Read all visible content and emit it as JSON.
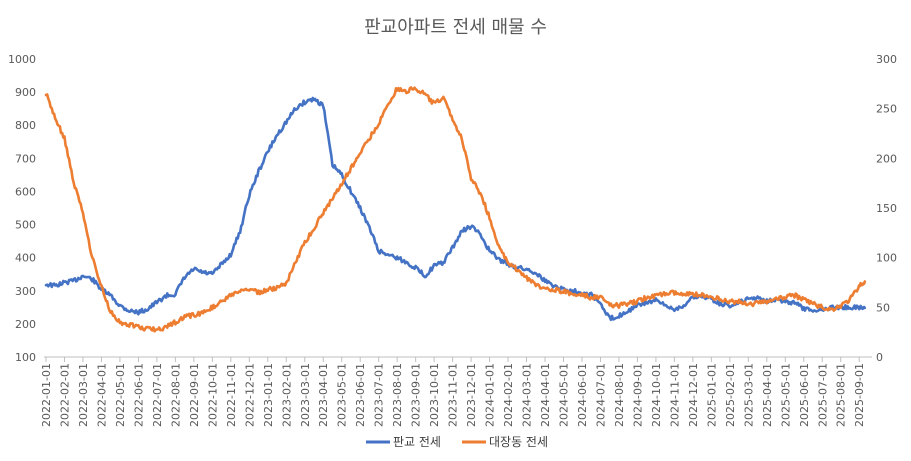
{
  "chart_data": {
    "type": "line",
    "title": "판교아파트 전세 매물 수",
    "x_ticks": [
      "2022-01-01",
      "2022-02-01",
      "2022-03-01",
      "2022-04-01",
      "2022-05-01",
      "2022-06-01",
      "2022-07-01",
      "2022-08-01",
      "2022-09-01",
      "2022-10-01",
      "2022-11-01",
      "2022-12-01",
      "2023-01-01",
      "2023-02-01",
      "2023-03-01",
      "2023-04-01",
      "2023-05-01",
      "2023-06-01",
      "2023-07-01",
      "2023-08-01",
      "2023-09-01",
      "2023-10-01",
      "2023-11-01",
      "2023-12-01",
      "2024-01-01",
      "2024-02-01",
      "2024-03-01",
      "2024-04-01",
      "2024-05-01",
      "2024-06-01",
      "2024-07-01",
      "2024-08-01",
      "2024-09-01",
      "2024-10-01",
      "2024-11-01",
      "2024-12-01",
      "2025-01-01",
      "2025-02-01",
      "2025-03-01",
      "2025-04-01",
      "2025-05-01",
      "2025-06-01",
      "2025-07-01",
      "2025-08-01",
      "2025-09-01"
    ],
    "y_left": {
      "min": 100,
      "max": 1000,
      "ticks": [
        "100",
        "200",
        "300",
        "400",
        "500",
        "600",
        "700",
        "800",
        "900",
        "1000"
      ]
    },
    "y_right": {
      "min": 0,
      "max": 300,
      "ticks": [
        "0",
        "50",
        "100",
        "150",
        "200",
        "250",
        "300"
      ]
    },
    "grid": false,
    "legend_position": "bottom",
    "series": [
      {
        "name": "판교 전세",
        "axis": "left",
        "color": "#4472C4",
        "x": [
          0,
          0.5,
          1,
          1.5,
          2,
          2.5,
          3,
          3.5,
          4,
          4.5,
          5,
          5.5,
          6,
          6.5,
          7,
          7.5,
          8,
          8.5,
          9,
          9.5,
          10,
          10.5,
          11,
          11.5,
          12,
          12.5,
          13,
          13.5,
          14,
          14.5,
          15,
          15.5,
          16,
          16.5,
          17,
          17.5,
          18,
          18.5,
          19,
          19.5,
          20,
          20.5,
          21,
          21.5,
          22,
          22.5,
          23,
          23.5,
          24,
          24.5,
          25,
          25.5,
          26,
          26.5,
          27,
          27.5,
          28,
          28.5,
          29,
          29.5,
          30,
          30.5,
          31,
          31.5,
          32,
          32.5,
          33,
          33.5,
          34,
          34.5,
          35,
          35.5,
          36,
          36.5,
          37,
          37.5,
          38,
          38.5,
          39,
          39.5,
          40,
          40.5,
          41,
          41.5,
          42,
          42.5,
          43,
          43.5,
          44,
          44.3
        ],
        "values": [
          320,
          315,
          325,
          330,
          345,
          335,
          305,
          285,
          255,
          240,
          235,
          245,
          265,
          285,
          290,
          340,
          365,
          355,
          350,
          380,
          410,
          480,
          590,
          660,
          720,
          770,
          810,
          850,
          870,
          880,
          860,
          680,
          650,
          600,
          550,
          490,
          420,
          410,
          400,
          385,
          370,
          345,
          375,
          385,
          430,
          480,
          495,
          470,
          420,
          395,
          380,
          370,
          365,
          355,
          330,
          315,
          305,
          300,
          295,
          290,
          260,
          215,
          225,
          240,
          255,
          265,
          270,
          255,
          245,
          255,
          280,
          285,
          275,
          260,
          255,
          265,
          275,
          280,
          270,
          275,
          265,
          265,
          245,
          240,
          245,
          250,
          250,
          250,
          250,
          248
        ]
      },
      {
        "name": "대장동 전세",
        "axis": "right",
        "color": "#ED7D31",
        "x": [
          0,
          0.5,
          1,
          1.5,
          2,
          2.5,
          3,
          3.5,
          4,
          4.5,
          5,
          5.5,
          6,
          6.5,
          7,
          7.5,
          8,
          8.5,
          9,
          9.5,
          10,
          10.5,
          11,
          11.5,
          12,
          12.5,
          13,
          13.5,
          14,
          14.5,
          15,
          15.5,
          16,
          16.5,
          17,
          17.5,
          18,
          18.5,
          19,
          19.5,
          20,
          20.5,
          21,
          21.5,
          22,
          22.5,
          23,
          23.5,
          24,
          24.5,
          25,
          25.5,
          26,
          26.5,
          27,
          27.5,
          28,
          28.5,
          29,
          29.5,
          30,
          30.5,
          31,
          31.5,
          32,
          32.5,
          33,
          33.5,
          34,
          34.5,
          35,
          35.5,
          36,
          36.5,
          37,
          37.5,
          38,
          38.5,
          39,
          39.5,
          40,
          40.5,
          41,
          41.5,
          42,
          42.5,
          43,
          43.5,
          44,
          44.3
        ],
        "values": [
          265,
          240,
          220,
          175,
          145,
          100,
          70,
          45,
          35,
          33,
          30,
          28,
          28,
          30,
          35,
          40,
          42,
          45,
          50,
          55,
          62,
          65,
          68,
          65,
          68,
          70,
          75,
          95,
          115,
          130,
          145,
          160,
          175,
          190,
          205,
          220,
          235,
          255,
          270,
          268,
          270,
          265,
          255,
          262,
          240,
          220,
          180,
          165,
          140,
          110,
          95,
          88,
          80,
          72,
          68,
          68,
          66,
          62,
          62,
          60,
          60,
          52,
          52,
          54,
          56,
          60,
          62,
          64,
          65,
          62,
          64,
          62,
          60,
          58,
          56,
          56,
          52,
          54,
          56,
          58,
          60,
          62,
          58,
          54,
          50,
          48,
          52,
          58,
          72,
          76
        ]
      }
    ]
  }
}
